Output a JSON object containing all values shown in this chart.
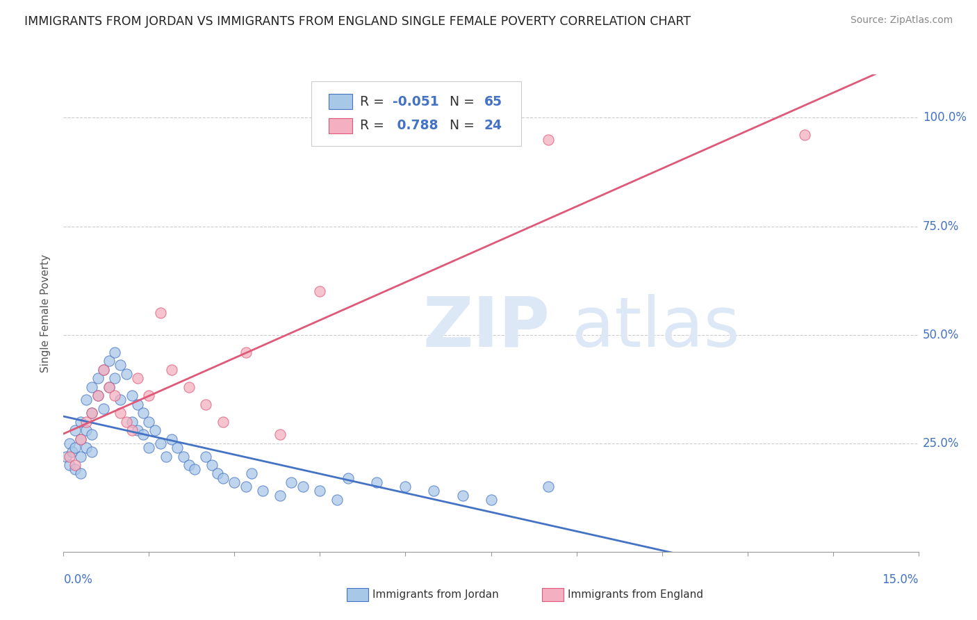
{
  "title": "IMMIGRANTS FROM JORDAN VS IMMIGRANTS FROM ENGLAND SINGLE FEMALE POVERTY CORRELATION CHART",
  "source": "Source: ZipAtlas.com",
  "ylabel": "Single Female Poverty",
  "color_jordan": "#a8c8e8",
  "color_england": "#f4b0c0",
  "line_color_jordan": "#4472c4",
  "line_color_england": "#e05878",
  "jordan_x": [
    0.0005,
    0.001,
    0.001,
    0.0015,
    0.002,
    0.002,
    0.002,
    0.003,
    0.003,
    0.003,
    0.003,
    0.004,
    0.004,
    0.004,
    0.005,
    0.005,
    0.005,
    0.005,
    0.006,
    0.006,
    0.007,
    0.007,
    0.008,
    0.008,
    0.009,
    0.009,
    0.01,
    0.01,
    0.011,
    0.012,
    0.012,
    0.013,
    0.013,
    0.014,
    0.014,
    0.015,
    0.015,
    0.016,
    0.017,
    0.018,
    0.019,
    0.02,
    0.021,
    0.022,
    0.023,
    0.025,
    0.026,
    0.027,
    0.028,
    0.03,
    0.032,
    0.033,
    0.035,
    0.038,
    0.04,
    0.042,
    0.045,
    0.048,
    0.05,
    0.055,
    0.06,
    0.065,
    0.07,
    0.075,
    0.085
  ],
  "jordan_y": [
    0.22,
    0.25,
    0.2,
    0.23,
    0.28,
    0.24,
    0.19,
    0.3,
    0.26,
    0.22,
    0.18,
    0.35,
    0.28,
    0.24,
    0.38,
    0.32,
    0.27,
    0.23,
    0.4,
    0.36,
    0.42,
    0.33,
    0.44,
    0.38,
    0.46,
    0.4,
    0.43,
    0.35,
    0.41,
    0.36,
    0.3,
    0.34,
    0.28,
    0.32,
    0.27,
    0.3,
    0.24,
    0.28,
    0.25,
    0.22,
    0.26,
    0.24,
    0.22,
    0.2,
    0.19,
    0.22,
    0.2,
    0.18,
    0.17,
    0.16,
    0.15,
    0.18,
    0.14,
    0.13,
    0.16,
    0.15,
    0.14,
    0.12,
    0.17,
    0.16,
    0.15,
    0.14,
    0.13,
    0.12,
    0.15
  ],
  "england_x": [
    0.001,
    0.002,
    0.003,
    0.004,
    0.005,
    0.006,
    0.007,
    0.008,
    0.009,
    0.01,
    0.011,
    0.012,
    0.013,
    0.015,
    0.017,
    0.019,
    0.022,
    0.025,
    0.028,
    0.032,
    0.038,
    0.045,
    0.085,
    0.13
  ],
  "england_y": [
    0.22,
    0.2,
    0.26,
    0.3,
    0.32,
    0.36,
    0.42,
    0.38,
    0.36,
    0.32,
    0.3,
    0.28,
    0.4,
    0.36,
    0.55,
    0.42,
    0.38,
    0.34,
    0.3,
    0.46,
    0.27,
    0.6,
    0.95,
    0.96
  ],
  "xlim": [
    0.0,
    0.15
  ],
  "ylim": [
    0.0,
    1.1
  ],
  "yticks": [
    0.25,
    0.5,
    0.75,
    1.0
  ],
  "ytick_labels": [
    "25.0%",
    "50.0%",
    "75.0%",
    "100.0%"
  ]
}
